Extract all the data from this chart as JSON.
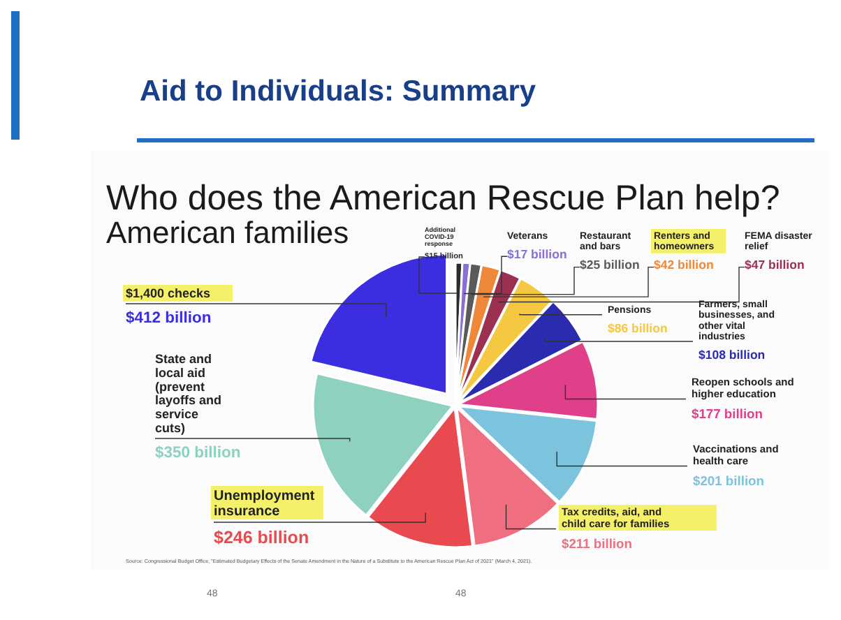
{
  "chart_data": {
    "type": "pie",
    "title": "Who does the American Rescue Plan help?",
    "subtitle": "American families",
    "categories": [
      "Additional COVID-19 response",
      "Veterans",
      "Restaurant and bars",
      "Renters and homeowners",
      "FEMA disaster relief",
      "Pensions",
      "Farmers, small businesses, and other vital industries",
      "Reopen schools and higher education",
      "Vaccinations and health care",
      "Tax credits, aid, and child care for families",
      "Unemployment insurance",
      "State and local aid (prevent layoffs and service cuts)",
      "$1,400 checks"
    ],
    "values": [
      15,
      17,
      25,
      42,
      47,
      86,
      108,
      177,
      201,
      211,
      246,
      350,
      412
    ],
    "colors": [
      "#2a2a2a",
      "#8a6fd6",
      "#5a5a5a",
      "#f0883a",
      "#9b3050",
      "#f5c842",
      "#2b2bb0",
      "#e0408a",
      "#7cc3dd",
      "#ef6f80",
      "#e84a50",
      "#8ed1bf",
      "#3a2ee0"
    ],
    "value_labels": [
      "$15 billion",
      "$17 billion",
      "$25 billion",
      "$42 billion",
      "$47 billion",
      "$86 billion",
      "$108 billion",
      "$177 billion",
      "$201 billion",
      "$211 billion",
      "$246 billion",
      "$350 billion",
      "$412 billion"
    ],
    "annotations": [
      "Aid to Individuals: Summary",
      "Source: Congressional Budget Office, \"Estimated Budgetary Effects of the Senate Amendment in the Nature of a Substitute to the American Rescue Plan Act of 2021\" (March 4, 2021).",
      "48",
      "48"
    ]
  }
}
